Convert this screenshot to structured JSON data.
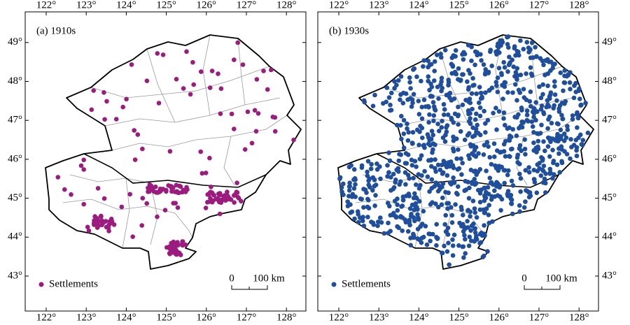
{
  "panels": [
    {
      "label": "(a) 1910s",
      "legend": "Settlements",
      "color": "#9b1b7e",
      "scale": [
        "0",
        "100 km"
      ]
    },
    {
      "label": "(b) 1930s",
      "legend": "Settlements",
      "color": "#1f4e9c",
      "scale": [
        "0",
        "100 km"
      ]
    }
  ],
  "lon_ticks": [
    {
      "value": 122,
      "label": "122°"
    },
    {
      "value": 123,
      "label": "123°"
    },
    {
      "value": 124,
      "label": "124°"
    },
    {
      "value": 125,
      "label": "125°"
    },
    {
      "value": 126,
      "label": "126°"
    },
    {
      "value": 127,
      "label": "127°"
    },
    {
      "value": 128,
      "label": "128°"
    }
  ],
  "lat_ticks": [
    {
      "value": 43,
      "label": "43°"
    },
    {
      "value": 44,
      "label": "44°"
    },
    {
      "value": 45,
      "label": "45°"
    },
    {
      "value": 46,
      "label": "46°"
    },
    {
      "value": 47,
      "label": "47°"
    },
    {
      "value": 48,
      "label": "48°"
    },
    {
      "value": 49,
      "label": "49°"
    }
  ]
}
